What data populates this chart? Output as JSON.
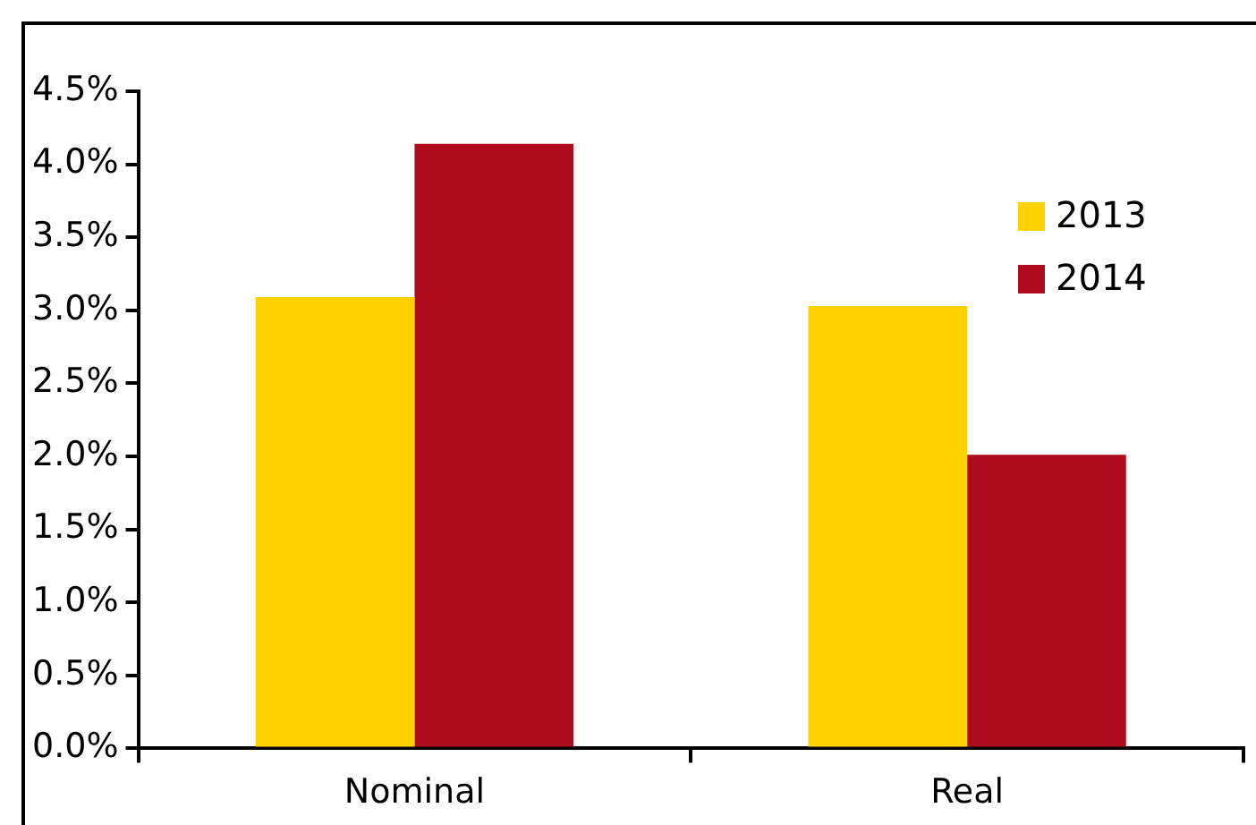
{
  "chart_data": {
    "type": "bar",
    "categories": [
      "Nominal",
      "Real"
    ],
    "series": [
      {
        "name": "2013",
        "color": "#fdd200",
        "values": [
          3.09,
          3.03
        ]
      },
      {
        "name": "2014",
        "color": "#ae0c1c",
        "values": [
          4.14,
          2.01
        ]
      }
    ],
    "ylim": [
      0,
      4.5
    ],
    "yticks": [
      {
        "value": 0,
        "label": "0.0%"
      },
      {
        "value": 0.5,
        "label": "0.5%"
      },
      {
        "value": 1,
        "label": "1.0%"
      },
      {
        "value": 1.5,
        "label": "1.5%"
      },
      {
        "value": 2,
        "label": "2.0%"
      },
      {
        "value": 2.5,
        "label": "2.5%"
      },
      {
        "value": 3,
        "label": "3.0%"
      },
      {
        "value": 3.5,
        "label": "3.5%"
      },
      {
        "value": 4,
        "label": "4.0%"
      },
      {
        "value": 4.5,
        "label": "4.5%"
      }
    ],
    "legend": "top right"
  }
}
